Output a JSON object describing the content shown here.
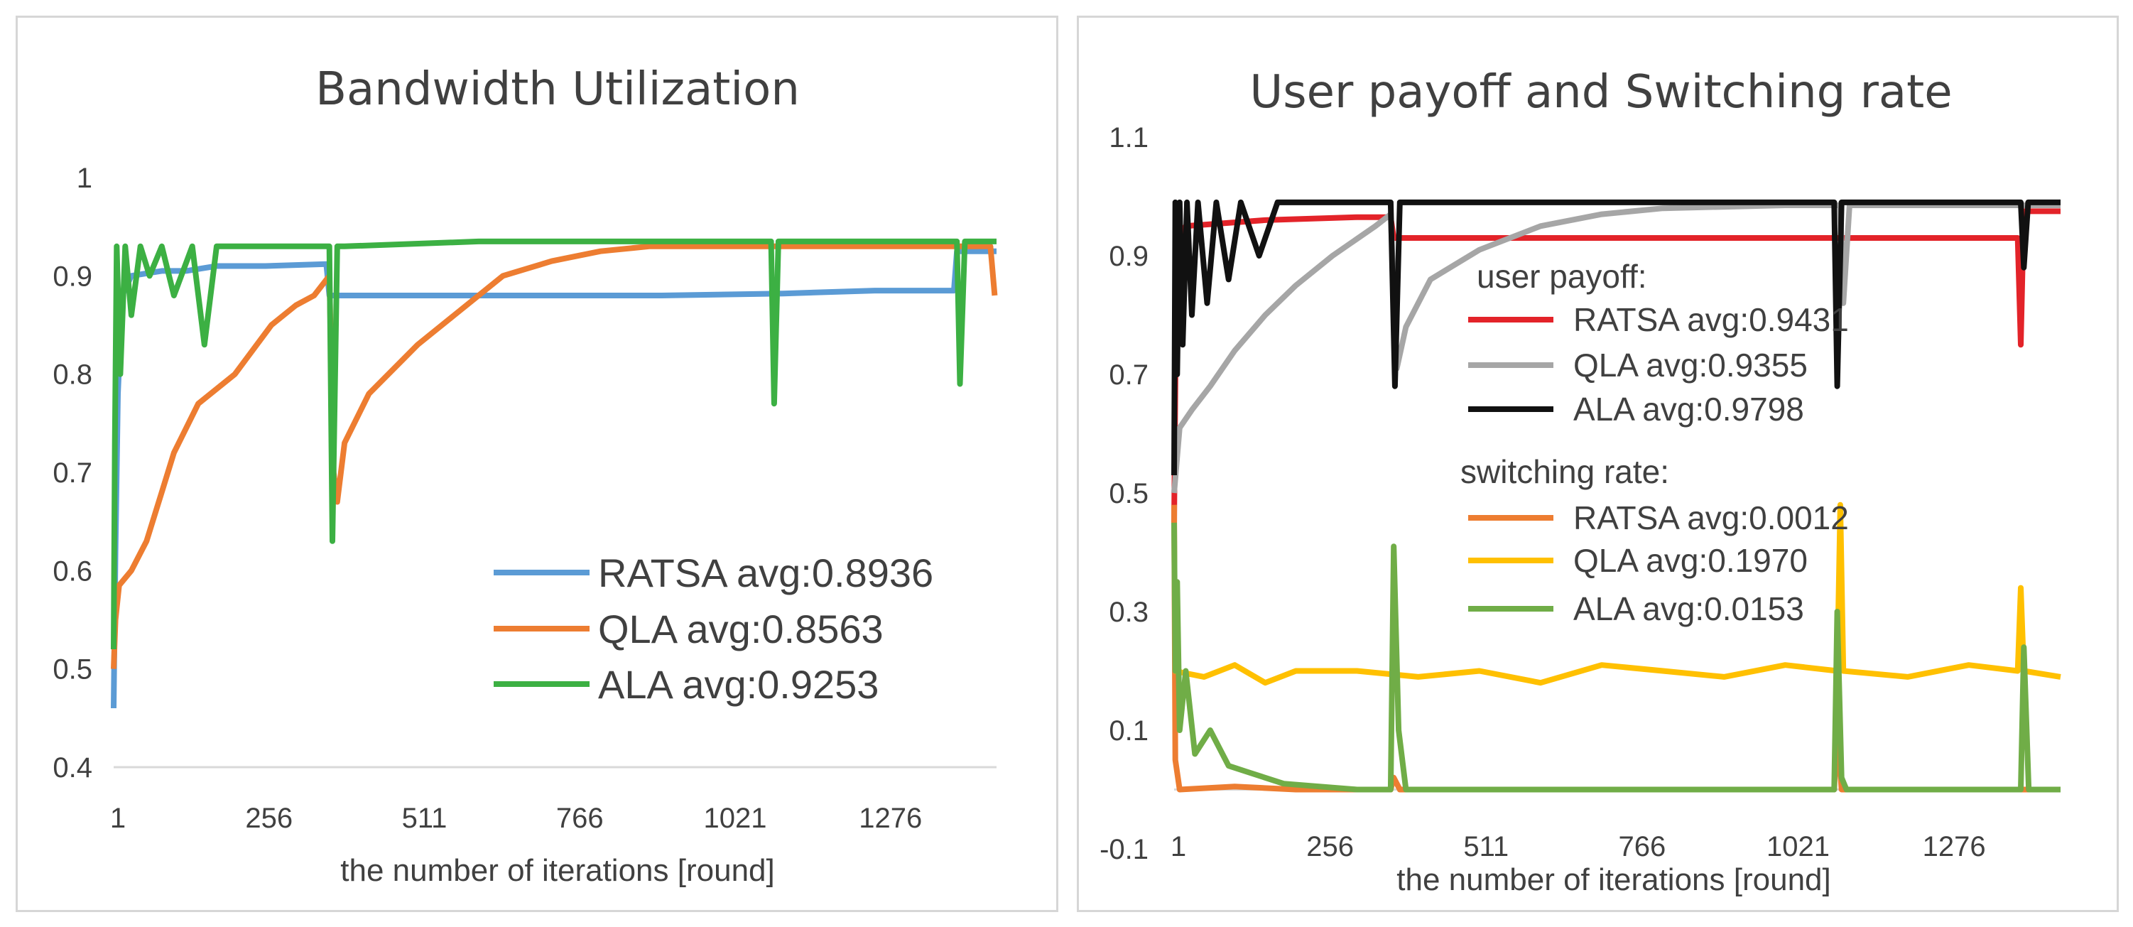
{
  "chart_data": [
    {
      "type": "line",
      "title": "Bandwidth Utilization",
      "xlabel": "the number of iterations [round]",
      "ylabel": "",
      "x_ticks": [
        "1",
        "256",
        "511",
        "766",
        "1021",
        "1276"
      ],
      "y_ticks": [
        "0.4",
        "0.5",
        "0.6",
        "0.7",
        "0.8",
        "0.9",
        "1"
      ],
      "xlim": [
        1,
        1450
      ],
      "ylim": [
        0.4,
        1.0
      ],
      "legend_position": "bottom-right",
      "series": [
        {
          "name": "RATSA",
          "legend": "RATSA avg:0.8936",
          "color": "#5b9bd5",
          "points": [
            [
              1,
              0.46
            ],
            [
              4,
              0.62
            ],
            [
              8,
              0.78
            ],
            [
              15,
              0.88
            ],
            [
              30,
              0.9
            ],
            [
              80,
              0.905
            ],
            [
              120,
              0.905
            ],
            [
              170,
              0.91
            ],
            [
              250,
              0.91
            ],
            [
              350,
              0.912
            ],
            [
              355,
              0.88
            ],
            [
              600,
              0.88
            ],
            [
              900,
              0.88
            ],
            [
              1100,
              0.882
            ],
            [
              1250,
              0.885
            ],
            [
              1380,
              0.885
            ],
            [
              1385,
              0.925
            ],
            [
              1450,
              0.925
            ]
          ]
        },
        {
          "name": "QLA",
          "legend": "QLA     avg:0.8563",
          "color": "#ed7d31",
          "points": [
            [
              1,
              0.5
            ],
            [
              4,
              0.55
            ],
            [
              10,
              0.585
            ],
            [
              30,
              0.6
            ],
            [
              55,
              0.63
            ],
            [
              80,
              0.68
            ],
            [
              100,
              0.72
            ],
            [
              140,
              0.77
            ],
            [
              200,
              0.8
            ],
            [
              260,
              0.85
            ],
            [
              300,
              0.87
            ],
            [
              330,
              0.88
            ],
            [
              355,
              0.9
            ],
            [
              362,
              0.7
            ],
            [
              368,
              0.67
            ],
            [
              380,
              0.73
            ],
            [
              420,
              0.78
            ],
            [
              500,
              0.83
            ],
            [
              560,
              0.86
            ],
            [
              640,
              0.9
            ],
            [
              720,
              0.915
            ],
            [
              800,
              0.925
            ],
            [
              880,
              0.93
            ],
            [
              1000,
              0.93
            ],
            [
              1200,
              0.93
            ],
            [
              1300,
              0.93
            ],
            [
              1400,
              0.93
            ],
            [
              1440,
              0.93
            ],
            [
              1447,
              0.88
            ]
          ]
        },
        {
          "name": "ALA",
          "legend": "ALA       avg:0.9253",
          "color": "#3cb043",
          "points": [
            [
              1,
              0.52
            ],
            [
              3,
              0.73
            ],
            [
              6,
              0.93
            ],
            [
              12,
              0.8
            ],
            [
              20,
              0.93
            ],
            [
              30,
              0.86
            ],
            [
              45,
              0.93
            ],
            [
              60,
              0.9
            ],
            [
              80,
              0.93
            ],
            [
              100,
              0.88
            ],
            [
              130,
              0.93
            ],
            [
              150,
              0.83
            ],
            [
              170,
              0.93
            ],
            [
              250,
              0.93
            ],
            [
              355,
              0.93
            ],
            [
              360,
              0.63
            ],
            [
              368,
              0.93
            ],
            [
              380,
              0.93
            ],
            [
              600,
              0.935
            ],
            [
              1080,
              0.935
            ],
            [
              1085,
              0.77
            ],
            [
              1092,
              0.935
            ],
            [
              1110,
              0.935
            ],
            [
              1385,
              0.935
            ],
            [
              1390,
              0.79
            ],
            [
              1398,
              0.935
            ],
            [
              1450,
              0.935
            ]
          ]
        }
      ]
    },
    {
      "type": "line",
      "title": "User payoff and Switching rate",
      "xlabel": "the number of iterations [round]",
      "ylabel": "",
      "x_ticks": [
        "1",
        "256",
        "511",
        "766",
        "1021",
        "1276"
      ],
      "y_ticks": [
        "-0.1",
        "0.1",
        "0.3",
        "0.5",
        "0.7",
        "0.9",
        "1.1"
      ],
      "xlim": [
        1,
        1450
      ],
      "ylim": [
        -0.1,
        1.1
      ],
      "legend_position": "top-right",
      "legend_groups": [
        "user payoff:",
        "switching rate:"
      ],
      "series": [
        {
          "name": "RATSA",
          "group": "user payoff",
          "legend": "RATSA avg:0.9431",
          "color": "#e32329",
          "points": [
            [
              1,
              0.45
            ],
            [
              5,
              0.9
            ],
            [
              20,
              0.95
            ],
            [
              150,
              0.96
            ],
            [
              300,
              0.965
            ],
            [
              355,
              0.965
            ],
            [
              360,
              0.93
            ],
            [
              700,
              0.93
            ],
            [
              1000,
              0.93
            ],
            [
              1100,
              0.93
            ],
            [
              1300,
              0.93
            ],
            [
              1380,
              0.93
            ],
            [
              1385,
              0.75
            ],
            [
              1390,
              0.975
            ],
            [
              1450,
              0.975
            ]
          ]
        },
        {
          "name": "QLA",
          "group": "user payoff",
          "legend": "QLA       avg:0.9355",
          "color": "#a6a6a6",
          "points": [
            [
              1,
              0.5
            ],
            [
              10,
              0.61
            ],
            [
              30,
              0.64
            ],
            [
              60,
              0.68
            ],
            [
              100,
              0.74
            ],
            [
              150,
              0.8
            ],
            [
              200,
              0.85
            ],
            [
              260,
              0.9
            ],
            [
              330,
              0.95
            ],
            [
              355,
              0.97
            ],
            [
              365,
              0.71
            ],
            [
              380,
              0.78
            ],
            [
              420,
              0.86
            ],
            [
              500,
              0.91
            ],
            [
              600,
              0.95
            ],
            [
              700,
              0.97
            ],
            [
              800,
              0.98
            ],
            [
              1000,
              0.985
            ],
            [
              1090,
              0.985
            ],
            [
              1095,
              0.82
            ],
            [
              1105,
              0.985
            ],
            [
              1450,
              0.985
            ]
          ]
        },
        {
          "name": "ALA",
          "group": "user payoff",
          "legend": "ALA        avg:0.9798",
          "color": "#111111",
          "points": [
            [
              1,
              0.53
            ],
            [
              3,
              0.99
            ],
            [
              6,
              0.7
            ],
            [
              10,
              0.99
            ],
            [
              15,
              0.75
            ],
            [
              22,
              0.99
            ],
            [
              30,
              0.8
            ],
            [
              40,
              0.99
            ],
            [
              55,
              0.82
            ],
            [
              70,
              0.99
            ],
            [
              90,
              0.86
            ],
            [
              110,
              0.99
            ],
            [
              140,
              0.9
            ],
            [
              170,
              0.99
            ],
            [
              355,
              0.99
            ],
            [
              362,
              0.68
            ],
            [
              370,
              0.99
            ],
            [
              1080,
              0.99
            ],
            [
              1085,
              0.68
            ],
            [
              1092,
              0.99
            ],
            [
              1385,
              0.99
            ],
            [
              1390,
              0.88
            ],
            [
              1397,
              0.99
            ],
            [
              1450,
              0.99
            ]
          ]
        },
        {
          "name": "RATSA",
          "group": "switching rate",
          "legend": "RATSA avg:0.0012",
          "color": "#ed7d31",
          "points": [
            [
              1,
              0.48
            ],
            [
              3,
              0.05
            ],
            [
              10,
              0.0
            ],
            [
              100,
              0.005
            ],
            [
              200,
              0.0
            ],
            [
              355,
              0.0
            ],
            [
              360,
              0.02
            ],
            [
              370,
              0.0
            ],
            [
              1080,
              0.0
            ],
            [
              1085,
              0.1
            ],
            [
              1092,
              0.0
            ],
            [
              1450,
              0.0
            ]
          ]
        },
        {
          "name": "QLA",
          "group": "switching rate",
          "legend": "QLA       avg:0.1970",
          "color": "#ffc000",
          "points": [
            [
              1,
              0.2
            ],
            [
              50,
              0.19
            ],
            [
              100,
              0.21
            ],
            [
              150,
              0.18
            ],
            [
              200,
              0.2
            ],
            [
              300,
              0.2
            ],
            [
              400,
              0.19
            ],
            [
              500,
              0.2
            ],
            [
              600,
              0.18
            ],
            [
              700,
              0.21
            ],
            [
              800,
              0.2
            ],
            [
              900,
              0.19
            ],
            [
              1000,
              0.21
            ],
            [
              1085,
              0.2
            ],
            [
              1090,
              0.48
            ],
            [
              1095,
              0.2
            ],
            [
              1200,
              0.19
            ],
            [
              1300,
              0.21
            ],
            [
              1380,
              0.2
            ],
            [
              1385,
              0.34
            ],
            [
              1390,
              0.2
            ],
            [
              1450,
              0.19
            ]
          ]
        },
        {
          "name": "ALA",
          "group": "switching rate",
          "legend": "ALA        avg:0.0153",
          "color": "#70ad47",
          "points": [
            [
              1,
              0.45
            ],
            [
              3,
              0.2
            ],
            [
              6,
              0.35
            ],
            [
              10,
              0.1
            ],
            [
              20,
              0.2
            ],
            [
              35,
              0.06
            ],
            [
              60,
              0.1
            ],
            [
              90,
              0.04
            ],
            [
              120,
              0.03
            ],
            [
              180,
              0.01
            ],
            [
              300,
              0.0
            ],
            [
              355,
              0.0
            ],
            [
              360,
              0.41
            ],
            [
              368,
              0.1
            ],
            [
              380,
              0.0
            ],
            [
              1080,
              0.0
            ],
            [
              1085,
              0.3
            ],
            [
              1092,
              0.02
            ],
            [
              1100,
              0.0
            ],
            [
              1385,
              0.0
            ],
            [
              1390,
              0.24
            ],
            [
              1398,
              0.0
            ],
            [
              1450,
              0.0
            ]
          ]
        }
      ]
    }
  ]
}
